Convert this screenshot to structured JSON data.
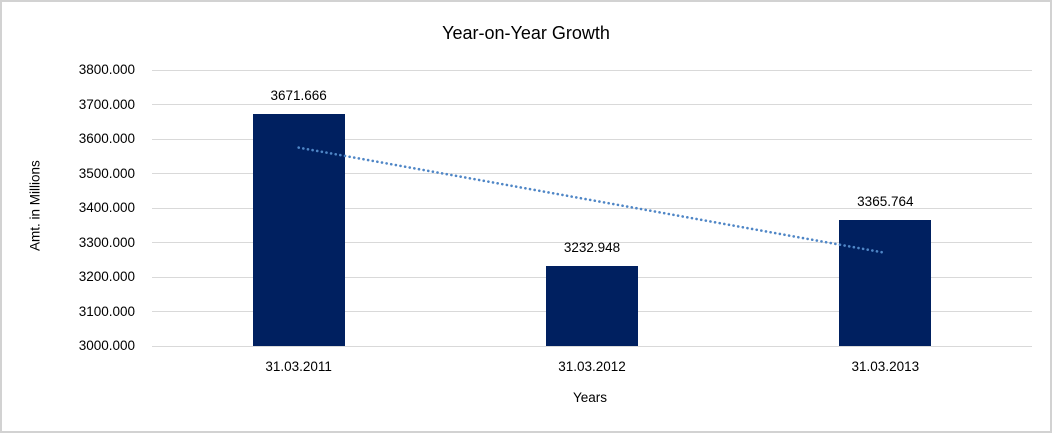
{
  "chart": {
    "title": "Year-on-Year Growth"
  },
  "chart_data": {
    "type": "bar",
    "title": "Year-on-Year Growth",
    "categories": [
      "31.03.2011",
      "31.03.2012",
      "31.03.2013"
    ],
    "values": [
      3671.666,
      3232.948,
      3365.764
    ],
    "data_labels": [
      "3671.666",
      "3232.948",
      "3365.764"
    ],
    "xlabel": "Years",
    "ylabel": "Amt. in Millions",
    "ylim": [
      3000,
      3800
    ],
    "ytick_step": 100,
    "ytick_labels": [
      "3000.000",
      "3100.000",
      "3200.000",
      "3300.000",
      "3400.000",
      "3500.000",
      "3600.000",
      "3700.000",
      "3800.000"
    ],
    "grid": true,
    "legend": "none",
    "trendline": {
      "type": "linear",
      "style": "dotted",
      "start_value": 3575,
      "end_value": 3270
    },
    "colors": {
      "bar": "#002060",
      "trendline": "#4f86c6",
      "gridline": "#d9d9d9",
      "border": "#d2d2d2",
      "text": "#000000",
      "background": "#ffffff"
    }
  }
}
